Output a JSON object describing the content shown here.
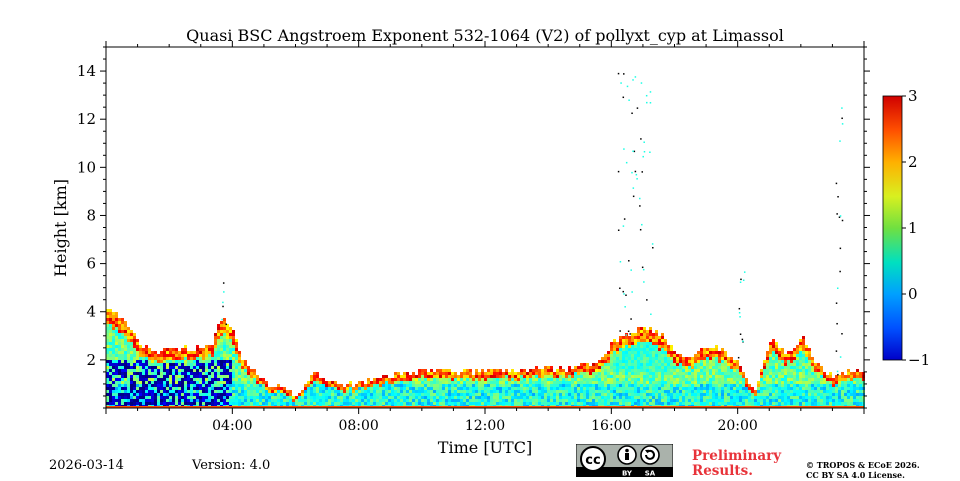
{
  "chart_data": {
    "type": "heatmap",
    "title": "Quasi BSC Angstroem Exponent 532-1064 (V2) of pollyxt_cyp at Limassol",
    "xlabel": "Time [UTC]",
    "ylabel": "Height [km]",
    "xlim": [
      0,
      24
    ],
    "ylim": [
      0,
      15
    ],
    "x_ticks": [
      4,
      8,
      12,
      16,
      20
    ],
    "x_tick_labels": [
      "04:00",
      "08:00",
      "12:00",
      "16:00",
      "20:00"
    ],
    "y_ticks": [
      2,
      4,
      6,
      8,
      10,
      12,
      14
    ],
    "y_tick_labels": [
      "2",
      "4",
      "6",
      "8",
      "10",
      "12",
      "14"
    ],
    "colorbar": {
      "min": -1,
      "max": 3,
      "ticks": [
        -1,
        0,
        1,
        2,
        3
      ],
      "tick_labels": [
        "−1",
        "0",
        "1",
        "2",
        "3"
      ],
      "colormap": "jet"
    },
    "layer_top_profile_km": {
      "time_h": [
        0,
        0.5,
        1,
        1.5,
        2,
        2.5,
        3,
        3.3,
        3.6,
        3.9,
        4.2,
        4.6,
        5,
        5.4,
        5.8,
        6,
        6.5,
        7,
        7.5,
        8,
        9,
        10,
        11,
        12,
        13,
        14,
        14.5,
        15,
        15.5,
        16,
        16.5,
        17,
        17.5,
        18,
        18.5,
        19,
        19.5,
        20,
        20.5,
        21,
        21.5,
        22,
        22.5,
        23,
        23.5,
        24
      ],
      "top_km": [
        4.2,
        3.6,
        2.6,
        2.3,
        2.3,
        2.4,
        2.5,
        2.5,
        3.6,
        3.4,
        2.2,
        1.6,
        1.0,
        0.8,
        0.6,
        0.3,
        1.5,
        1.1,
        0.9,
        1.0,
        1.3,
        1.5,
        1.4,
        1.5,
        1.5,
        1.6,
        1.6,
        1.7,
        1.8,
        2.6,
        3.0,
        3.3,
        3.0,
        2.2,
        2.1,
        2.6,
        2.3,
        1.8,
        0.5,
        2.8,
        2.2,
        2.9,
        1.7,
        1.2,
        1.5,
        1.3
      ]
    },
    "typical_values": {
      "boundary_layer_0_1km": 0.6,
      "aerosol_layer_1_2km": 0.9,
      "layer_top_edge": 2.1,
      "early_morning_core_00_04": -0.8,
      "surface_row": 2.2
    },
    "date": "2026-03-14",
    "version": "Version: 4.0",
    "preliminary": [
      "Preliminary",
      "Results."
    ],
    "license": [
      "© TROPOS & ECoE 2026.",
      "CC BY SA 4.0 License."
    ],
    "cc_badge": {
      "main": "cc",
      "by": "BY",
      "sa": "SA"
    }
  }
}
